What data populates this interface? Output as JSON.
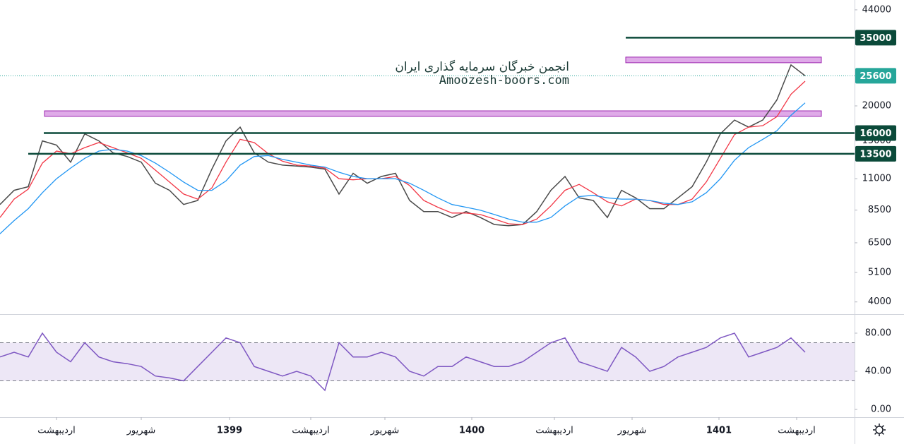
{
  "chart_data": [
    {
      "type": "line",
      "scale": "log",
      "watermark": [
        "انجمن خبرگان سرمایه گذاری ایران",
        "Amoozesh-boors.com"
      ],
      "xlim": [
        0,
        60.5
      ],
      "xticks": [
        {
          "value": 4,
          "label": "اردیبهشت"
        },
        {
          "value": 10,
          "label": "شهریور"
        },
        {
          "value": 16.25,
          "label": "1399"
        },
        {
          "value": 22,
          "label": "اردیبهشت"
        },
        {
          "value": 27.25,
          "label": "شهریور"
        },
        {
          "value": 33.4,
          "label": "1400"
        },
        {
          "value": 39.25,
          "label": "اردیبهشت"
        },
        {
          "value": 44.75,
          "label": "شهریور"
        },
        {
          "value": 50.9,
          "label": "1401"
        },
        {
          "value": 56.4,
          "label": "اردیبهشت"
        }
      ],
      "ylim": [
        3640,
        47700
      ],
      "yticks": [
        4000,
        5100,
        6500,
        8500,
        11000,
        15000,
        20000,
        44000
      ],
      "series": [
        {
          "color": "#4a4a4a",
          "values": [
            8900,
            10000,
            10300,
            15000,
            14500,
            12600,
            15900,
            15000,
            13600,
            13200,
            12600,
            10600,
            10000,
            8900,
            9200,
            11900,
            15000,
            16800,
            13600,
            12600,
            12300,
            12200,
            12100,
            11900,
            9700,
            11500,
            10600,
            11200,
            11500,
            9200,
            8400,
            8400,
            8000,
            8400,
            8000,
            7550,
            7480,
            7550,
            8400,
            10000,
            11200,
            9400,
            9200,
            8000,
            10000,
            9400,
            8600,
            8600,
            9400,
            10300,
            12600,
            15900,
            17800,
            16800,
            17800,
            21000,
            28000,
            25600
          ]
        },
        {
          "color": "#f23645",
          "values": [
            8000,
            9300,
            10100,
            12500,
            13800,
            13500,
            14200,
            14800,
            14200,
            13600,
            13000,
            11800,
            10700,
            9700,
            9300,
            10200,
            12600,
            15200,
            14800,
            13500,
            12700,
            12300,
            12200,
            12000,
            11000,
            10900,
            11000,
            11000,
            11200,
            10400,
            9200,
            8700,
            8300,
            8300,
            8200,
            7900,
            7600,
            7550,
            7900,
            8800,
            10000,
            10500,
            9800,
            9100,
            8800,
            9300,
            9200,
            8900,
            8900,
            9300,
            10700,
            13000,
            15800,
            16800,
            17000,
            18300,
            22000,
            24500
          ]
        },
        {
          "color": "#2196f3",
          "values": [
            7000,
            7800,
            8600,
            9800,
            11000,
            12000,
            13000,
            13800,
            14000,
            13800,
            13300,
            12500,
            11600,
            10700,
            10000,
            10000,
            10800,
            12300,
            13200,
            13300,
            12900,
            12600,
            12300,
            12100,
            11600,
            11200,
            11000,
            11000,
            11000,
            10600,
            10000,
            9400,
            8900,
            8700,
            8500,
            8200,
            7900,
            7700,
            7700,
            8000,
            8800,
            9500,
            9600,
            9400,
            9300,
            9300,
            9200,
            9000,
            8900,
            9100,
            9800,
            11000,
            12800,
            14200,
            15200,
            16300,
            18500,
            20500
          ]
        }
      ],
      "zones": [
        {
          "from": 18350,
          "to": 19200,
          "x_from": 3.15,
          "x_to": 58.15,
          "color": "#d48ee0"
        },
        {
          "from": 28500,
          "to": 29850,
          "x_from": 44.3,
          "x_to": 58.15,
          "color": "#d48ee0"
        }
      ],
      "levels": [
        {
          "value": 35000,
          "x_from": 44.3,
          "color": "#0b4a3a",
          "style": "solid"
        },
        {
          "value": 25600,
          "x_from": 0,
          "color": "#26a69a",
          "style": "dotted"
        },
        {
          "value": 16000,
          "x_from": 3.1,
          "color": "#0b4a3a",
          "style": "solid"
        },
        {
          "value": 13500,
          "x_from": 2,
          "color": "#0b4a3a",
          "style": "solid"
        }
      ]
    },
    {
      "type": "line",
      "scale": "linear",
      "xlim": [
        0,
        60.5
      ],
      "ylim": [
        0,
        98.5
      ],
      "yticks": [
        {
          "value": 0,
          "label": "0.00"
        },
        {
          "value": 40,
          "label": "40.00"
        },
        {
          "value": 80,
          "label": "80.00"
        }
      ],
      "band": [
        30,
        70
      ],
      "band_color": "#ede7f6",
      "series": [
        {
          "color": "#7e57c2",
          "values": [
            55,
            60,
            55,
            80,
            60,
            50,
            70,
            55,
            50,
            48,
            45,
            35,
            33,
            30,
            45,
            60,
            75,
            70,
            45,
            40,
            35,
            40,
            35,
            20,
            70,
            55,
            55,
            60,
            55,
            40,
            35,
            45,
            45,
            55,
            50,
            45,
            45,
            50,
            60,
            70,
            75,
            50,
            45,
            40,
            65,
            55,
            40,
            45,
            55,
            60,
            65,
            75,
            80,
            55,
            60,
            65,
            75,
            60
          ]
        }
      ]
    }
  ]
}
